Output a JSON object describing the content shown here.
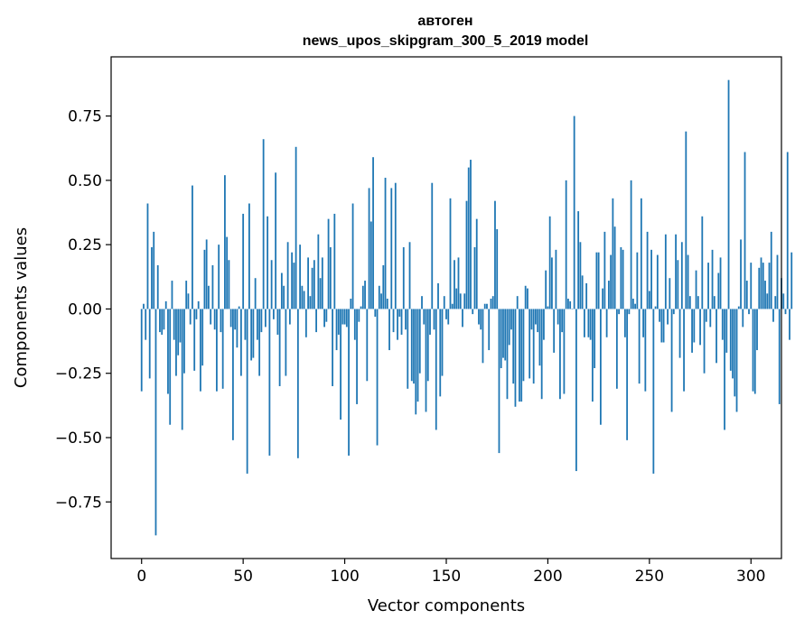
{
  "chart_data": {
    "type": "bar",
    "title": "автоген",
    "subtitle": "news_upos_skipgram_300_5_2019 model",
    "xlabel": "Vector components",
    "ylabel": "Components values",
    "xlim": [
      -15,
      315
    ],
    "ylim": [
      -0.97,
      0.98
    ],
    "x_ticks": [
      0,
      50,
      100,
      150,
      200,
      250,
      300
    ],
    "x_tick_labels": [
      "0",
      "50",
      "100",
      "150",
      "200",
      "250",
      "300"
    ],
    "y_ticks": [
      -0.75,
      -0.5,
      -0.25,
      0,
      0.25,
      0.5,
      0.75
    ],
    "y_tick_labels": [
      "−0.75",
      "−0.50",
      "−0.25",
      "0.00",
      "0.25",
      "0.50",
      "0.75"
    ],
    "grid": false,
    "bar_color": "#1f77b4",
    "values": [
      -0.32,
      0.02,
      -0.12,
      0.41,
      -0.27,
      0.24,
      0.3,
      -0.88,
      0.17,
      -0.09,
      -0.1,
      -0.08,
      0.03,
      -0.33,
      -0.45,
      0.11,
      -0.12,
      -0.26,
      -0.18,
      -0.13,
      -0.47,
      -0.25,
      0.11,
      0.06,
      -0.06,
      0.48,
      -0.24,
      -0.04,
      0.03,
      -0.32,
      -0.22,
      0.23,
      0.27,
      0.09,
      -0.06,
      0.17,
      -0.08,
      -0.32,
      0.25,
      -0.09,
      -0.31,
      0.52,
      0.28,
      0.19,
      -0.07,
      -0.51,
      -0.08,
      -0.15,
      0.01,
      -0.26,
      0.37,
      -0.12,
      -0.64,
      0.41,
      -0.2,
      -0.19,
      0.12,
      -0.12,
      -0.26,
      -0.09,
      0.66,
      -0.07,
      0.36,
      -0.57,
      0.19,
      -0.04,
      0.53,
      -0.1,
      -0.3,
      0.14,
      0.09,
      -0.26,
      0.26,
      -0.06,
      0.22,
      0.18,
      0.63,
      -0.58,
      0.25,
      0.09,
      0.07,
      -0.11,
      0.2,
      0.05,
      0.16,
      0.19,
      -0.09,
      0.29,
      0.12,
      0.2,
      -0.07,
      -0.05,
      0.35,
      0.24,
      -0.3,
      0.37,
      -0.16,
      -0.1,
      -0.43,
      -0.06,
      -0.06,
      -0.07,
      -0.57,
      0.04,
      0.41,
      -0.12,
      -0.37,
      -0.05,
      0.01,
      0.09,
      0.11,
      -0.28,
      0.47,
      0.34,
      0.59,
      -0.03,
      -0.53,
      0.09,
      0.06,
      0.17,
      0.51,
      0.04,
      -0.16,
      0.47,
      -0.09,
      0.49,
      -0.12,
      -0.03,
      -0.1,
      0.24,
      -0.08,
      -0.31,
      0.26,
      -0.28,
      -0.29,
      -0.41,
      -0.36,
      -0.25,
      0.05,
      -0.06,
      -0.4,
      -0.28,
      -0.1,
      0.49,
      -0.08,
      -0.47,
      0.1,
      -0.34,
      -0.26,
      0.05,
      -0.04,
      -0.06,
      0.43,
      0.02,
      0.19,
      0.08,
      0.2,
      0.06,
      -0.07,
      0.06,
      0.42,
      0.55,
      0.58,
      -0.02,
      0.24,
      0.35,
      -0.06,
      -0.08,
      -0.21,
      0.02,
      0.02,
      -0.16,
      0.04,
      0.05,
      0.42,
      0.31,
      -0.56,
      -0.23,
      -0.19,
      -0.2,
      -0.35,
      -0.14,
      -0.08,
      -0.29,
      -0.38,
      0.05,
      -0.36,
      -0.36,
      -0.28,
      0.09,
      0.08,
      -0.27,
      -0.08,
      -0.29,
      -0.06,
      -0.09,
      -0.22,
      -0.35,
      -0.12,
      0.15,
      0.01,
      0.36,
      0.2,
      -0.17,
      0.23,
      -0.06,
      -0.35,
      -0.09,
      -0.33,
      0.5,
      0.04,
      0.03,
      0.0,
      0.75,
      -0.63,
      0.38,
      0.26,
      0.13,
      -0.11,
      0.1,
      -0.11,
      -0.12,
      -0.36,
      -0.23,
      0.22,
      0.22,
      -0.45,
      0.08,
      0.3,
      -0.11,
      0.11,
      0.21,
      0.43,
      0.32,
      -0.31,
      -0.02,
      0.24,
      0.23,
      -0.11,
      -0.51,
      -0.02,
      0.5,
      0.04,
      0.02,
      0.22,
      -0.29,
      0.43,
      -0.11,
      -0.32,
      0.3,
      0.07,
      0.23,
      -0.64,
      0.01,
      0.21,
      -0.05,
      -0.13,
      -0.13,
      0.29,
      -0.06,
      0.12,
      -0.4,
      -0.02,
      0.29,
      0.19,
      -0.19,
      0.26,
      -0.32,
      0.69,
      0.21,
      0.05,
      -0.17,
      -0.13,
      0.15,
      0.05,
      -0.14,
      0.36,
      -0.25,
      -0.05,
      0.18,
      -0.07,
      0.23,
      0.05,
      -0.21,
      0.14,
      0.2,
      -0.12,
      -0.47,
      -0.17,
      0.89,
      -0.24,
      -0.27,
      -0.34,
      -0.4,
      0.01,
      0.27,
      -0.07,
      0.61,
      0.11,
      -0.02,
      0.18,
      -0.32,
      -0.33,
      -0.16,
      0.16,
      0.2,
      0.18,
      0.11,
      0.06,
      0.18,
      0.3,
      -0.05,
      0.05,
      0.21,
      -0.37,
      0.12,
      0.06,
      -0.02,
      0.61,
      -0.12,
      0.22
    ]
  }
}
